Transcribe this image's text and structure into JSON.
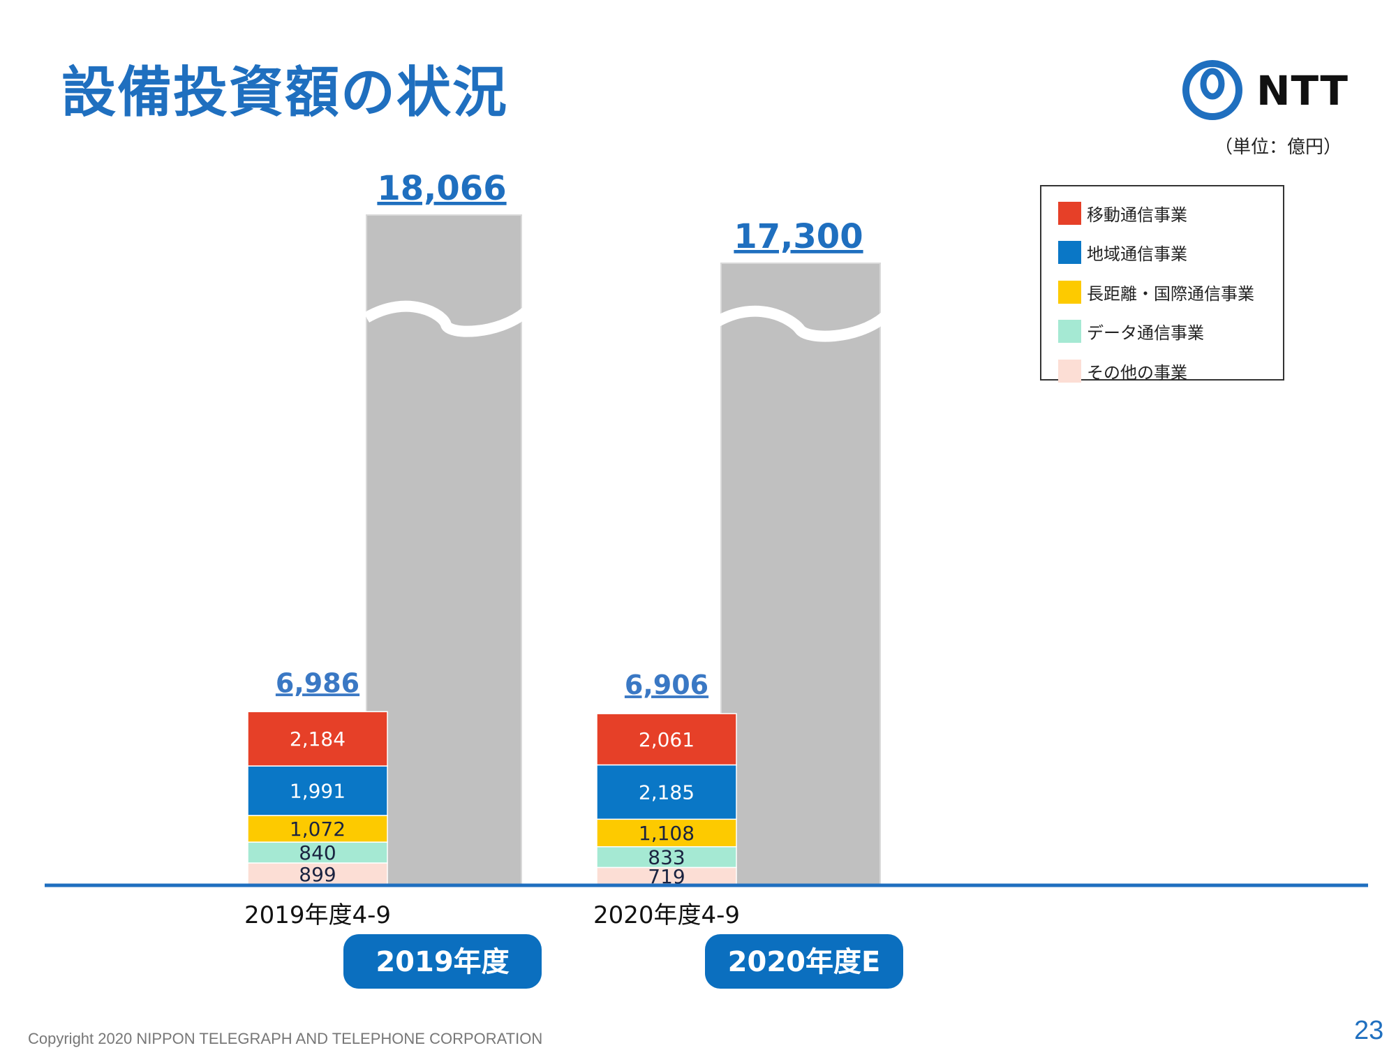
{
  "page": {
    "title": "設備投資額の状況",
    "unit": "（単位：億円）",
    "copyright": "Copyright 2020 NIPPON TELEGRAPH AND TELEPHONE CORPORATION",
    "page_number": "23",
    "logo_text": "NTT"
  },
  "colors": {
    "title": "#1f6fbf",
    "axis": "#1f6fbf",
    "total_bar": "#c0c0c0",
    "badge": "#0b6fbf"
  },
  "chart_data": {
    "type": "bar",
    "stacked": true,
    "unit": "億円",
    "categories": [
      "2019年度4-9",
      "2020年度4-9"
    ],
    "series": [
      {
        "name": "その他の事業",
        "color": "#fcded5",
        "values": [
          899,
          719
        ]
      },
      {
        "name": "データ通信事業",
        "color": "#a5e9d3",
        "values": [
          840,
          833
        ]
      },
      {
        "name": "長距離・国際通信事業",
        "color": "#fdca00",
        "values": [
          1072,
          1108
        ]
      },
      {
        "name": "地域通信事業",
        "color": "#0a77c6",
        "values": [
          1991,
          2185
        ]
      },
      {
        "name": "移動通信事業",
        "color": "#e64028",
        "values": [
          2184,
          2061
        ]
      }
    ],
    "subtotal_labels": [
      "6,986",
      "6,906"
    ],
    "full_year": {
      "labels": [
        "2019年度",
        "2020年度E"
      ],
      "values": [
        18066,
        17300
      ],
      "value_labels": [
        "18,066",
        "17,300"
      ]
    },
    "axis_broken": true,
    "legend": {
      "position": "top-right",
      "order": [
        "移動通信事業",
        "地域通信事業",
        "長距離・国際通信事業",
        "データ通信事業",
        "その他の事業"
      ]
    }
  }
}
